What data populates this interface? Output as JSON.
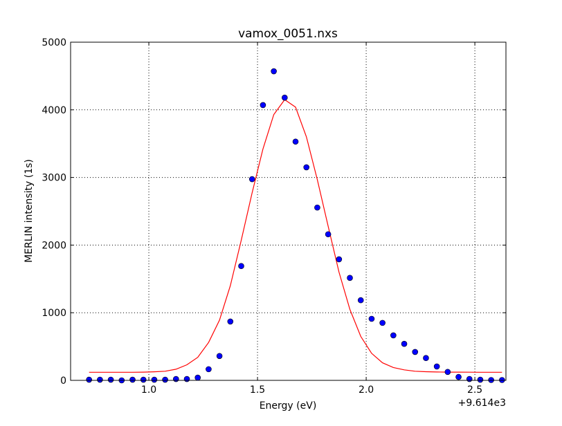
{
  "chart_data": {
    "type": "scatter",
    "title": "vamox_0051.nxs",
    "xlabel": "Energy (eV)",
    "ylabel": "MERLIN intensity (1s)",
    "x_offset_label": "+9.614e3",
    "xlim": [
      0.64,
      2.643
    ],
    "ylim": [
      0,
      5000
    ],
    "xticks": [
      1.0,
      1.5,
      2.0,
      2.5
    ],
    "xtick_labels": [
      "1.0",
      "1.5",
      "2.0",
      "2.5"
    ],
    "yticks": [
      0,
      1000,
      2000,
      3000,
      4000,
      5000
    ],
    "ytick_labels": [
      "0",
      "1000",
      "2000",
      "3000",
      "4000",
      "5000"
    ],
    "grid": true,
    "colors": {
      "points": "#0000ff",
      "fit": "#ff0000"
    },
    "x": [
      0.725,
      0.775,
      0.825,
      0.875,
      0.925,
      0.975,
      1.025,
      1.075,
      1.125,
      1.175,
      1.225,
      1.275,
      1.325,
      1.375,
      1.425,
      1.475,
      1.525,
      1.575,
      1.625,
      1.675,
      1.725,
      1.775,
      1.825,
      1.875,
      1.925,
      1.975,
      2.025,
      2.075,
      2.125,
      2.175,
      2.225,
      2.275,
      2.325,
      2.375,
      2.425,
      2.475,
      2.525,
      2.575,
      2.625
    ],
    "series": [
      {
        "kind": "points",
        "values": [
          10,
          10,
          10,
          0,
          10,
          10,
          10,
          10,
          20,
          20,
          40,
          165,
          360,
          870,
          1690,
          2975,
          4070,
          4570,
          4180,
          3530,
          3150,
          2555,
          2160,
          1790,
          1515,
          1185,
          910,
          850,
          665,
          540,
          420,
          330,
          205,
          125,
          50,
          20,
          10,
          5,
          5
        ]
      },
      {
        "kind": "line",
        "values": [
          120,
          120,
          120,
          120,
          120,
          122,
          127,
          135,
          165,
          230,
          340,
          560,
          890,
          1400,
          2070,
          2770,
          3420,
          3930,
          4150,
          4040,
          3600,
          2970,
          2280,
          1600,
          1050,
          650,
          400,
          260,
          190,
          155,
          135,
          128,
          124,
          122,
          122,
          121,
          120,
          120,
          120
        ]
      }
    ]
  }
}
